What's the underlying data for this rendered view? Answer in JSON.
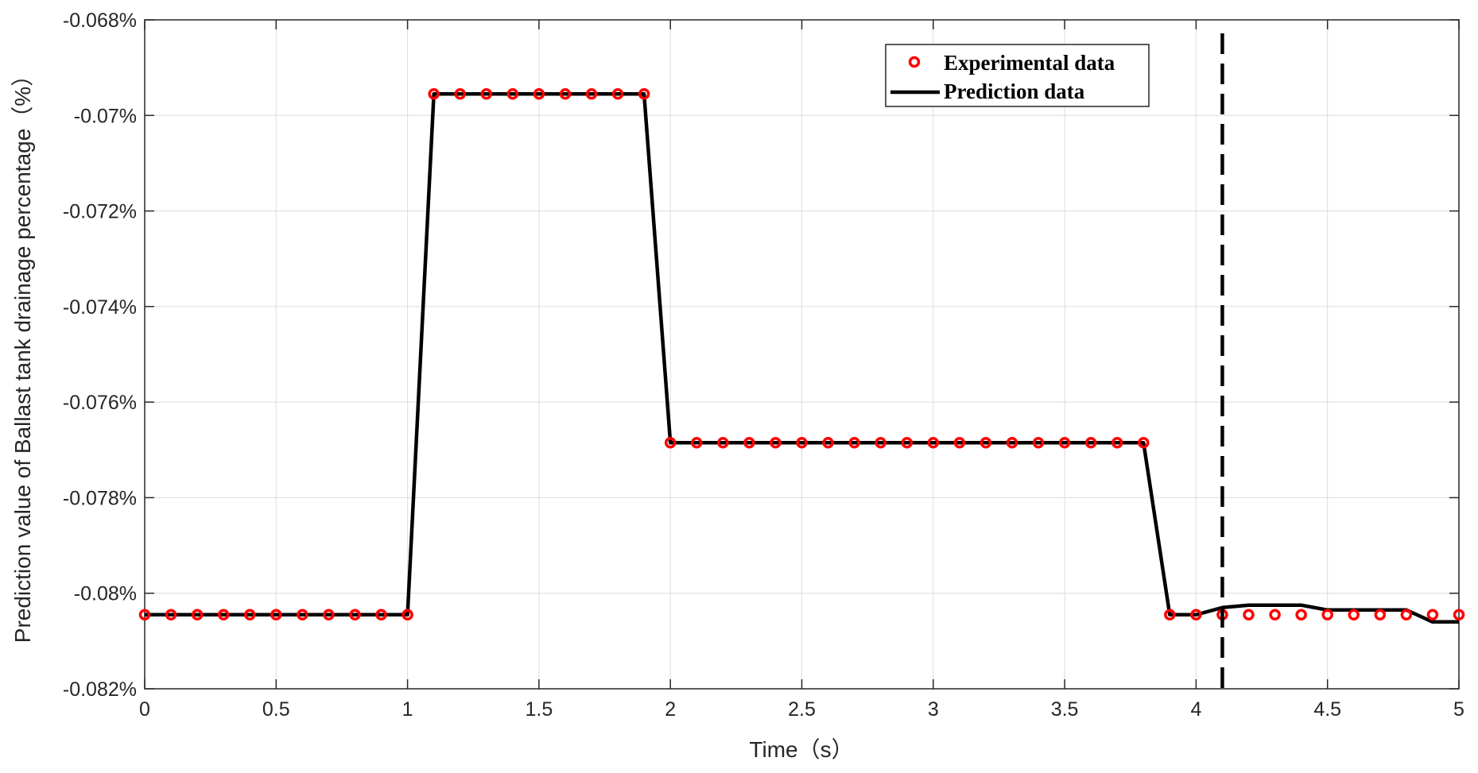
{
  "chart_data": {
    "type": "line",
    "title": "",
    "xlabel": "Time（s）",
    "ylabel": "Prediction value of Ballast tank drainage percentage（%）",
    "xlim": [
      0,
      5
    ],
    "ylim": [
      -0.082,
      -0.068
    ],
    "x_ticks": [
      0,
      0.5,
      1,
      1.5,
      2,
      2.5,
      3,
      3.5,
      4,
      4.5,
      5
    ],
    "x_tick_labels": [
      "0",
      "0.5",
      "1",
      "1.5",
      "2",
      "2.5",
      "3",
      "3.5",
      "4",
      "4.5",
      "5"
    ],
    "y_ticks": [
      -0.082,
      -0.08,
      -0.078,
      -0.076,
      -0.074,
      -0.072,
      -0.07,
      -0.068
    ],
    "y_tick_labels": [
      "-0.082%",
      "-0.08%",
      "-0.078%",
      "-0.076%",
      "-0.074%",
      "-0.072%",
      "-0.07%",
      "-0.068%"
    ],
    "grid": true,
    "legend_position": "top-right",
    "vertical_marker_x": 4.1,
    "series": [
      {
        "name": "Experimental data",
        "style": "markers",
        "color": "#ff0000",
        "x": [
          0,
          0.1,
          0.2,
          0.3,
          0.4,
          0.5,
          0.6,
          0.7,
          0.8,
          0.9,
          1.0,
          1.1,
          1.2,
          1.3,
          1.4,
          1.5,
          1.6,
          1.7,
          1.8,
          1.9,
          2.0,
          2.1,
          2.2,
          2.3,
          2.4,
          2.5,
          2.6,
          2.7,
          2.8,
          2.9,
          3.0,
          3.1,
          3.2,
          3.3,
          3.4,
          3.5,
          3.6,
          3.7,
          3.8,
          3.9,
          4.0,
          4.1,
          4.2,
          4.3,
          4.4,
          4.5,
          4.6,
          4.7,
          4.8,
          4.9,
          5.0
        ],
        "y": [
          -0.08045,
          -0.08045,
          -0.08045,
          -0.08045,
          -0.08045,
          -0.08045,
          -0.08045,
          -0.08045,
          -0.08045,
          -0.08045,
          -0.08045,
          -0.06955,
          -0.06955,
          -0.06955,
          -0.06955,
          -0.06955,
          -0.06955,
          -0.06955,
          -0.06955,
          -0.06955,
          -0.07685,
          -0.07685,
          -0.07685,
          -0.07685,
          -0.07685,
          -0.07685,
          -0.07685,
          -0.07685,
          -0.07685,
          -0.07685,
          -0.07685,
          -0.07685,
          -0.07685,
          -0.07685,
          -0.07685,
          -0.07685,
          -0.07685,
          -0.07685,
          -0.07685,
          -0.08045,
          -0.08045,
          -0.08045,
          -0.08045,
          -0.08045,
          -0.08045,
          -0.08045,
          -0.08045,
          -0.08045,
          -0.08045,
          -0.08045,
          -0.08045
        ]
      },
      {
        "name": "Prediction data",
        "style": "line",
        "color": "#000000",
        "x": [
          0,
          0.1,
          0.2,
          0.3,
          0.4,
          0.5,
          0.6,
          0.7,
          0.8,
          0.9,
          1.0,
          1.1,
          1.2,
          1.3,
          1.4,
          1.5,
          1.6,
          1.7,
          1.8,
          1.9,
          2.0,
          2.1,
          2.2,
          2.3,
          2.4,
          2.5,
          2.6,
          2.7,
          2.8,
          2.9,
          3.0,
          3.1,
          3.2,
          3.3,
          3.4,
          3.5,
          3.6,
          3.7,
          3.8,
          3.9,
          4.0,
          4.1,
          4.2,
          4.3,
          4.4,
          4.5,
          4.6,
          4.7,
          4.8,
          4.9,
          5.0
        ],
        "y": [
          -0.08045,
          -0.08045,
          -0.08045,
          -0.08045,
          -0.08045,
          -0.08045,
          -0.08045,
          -0.08045,
          -0.08045,
          -0.08045,
          -0.08045,
          -0.06955,
          -0.06955,
          -0.06955,
          -0.06955,
          -0.06955,
          -0.06955,
          -0.06955,
          -0.06955,
          -0.06955,
          -0.07685,
          -0.07685,
          -0.07685,
          -0.07685,
          -0.07685,
          -0.07685,
          -0.07685,
          -0.07685,
          -0.07685,
          -0.07685,
          -0.07685,
          -0.07685,
          -0.07685,
          -0.07685,
          -0.07685,
          -0.07685,
          -0.07685,
          -0.07685,
          -0.07685,
          -0.08045,
          -0.08045,
          -0.0803,
          -0.08025,
          -0.08025,
          -0.08025,
          -0.08035,
          -0.08035,
          -0.08035,
          -0.08035,
          -0.0806,
          -0.0806
        ]
      }
    ]
  }
}
